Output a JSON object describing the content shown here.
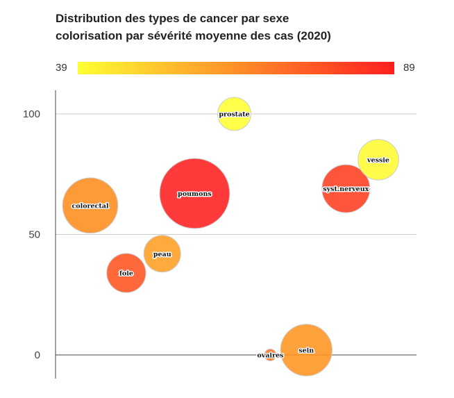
{
  "chart_data": {
    "type": "bubble",
    "title_line1": "Distribution des types de cancer par sexe",
    "title_line2": "colorisation par sévérité moyenne des cas (2020)",
    "color_scale": {
      "min": 39,
      "max": 89,
      "min_label": "39",
      "max_label": "89",
      "colors": [
        "#ffff33",
        "#ff1f1f"
      ]
    },
    "y_ticks": [
      0,
      50,
      100
    ],
    "y_tick_labels": [
      "0",
      "50",
      "100"
    ],
    "ylim": [
      -10,
      110
    ],
    "xlim": [
      0,
      100
    ],
    "grid": true,
    "points": [
      {
        "label": "prostate",
        "x": 50,
        "y": 100,
        "size": 3,
        "color": 39
      },
      {
        "label": "vessie",
        "x": 90,
        "y": 81,
        "size": 4,
        "color": 40
      },
      {
        "label": "syst.nerveux",
        "x": 81,
        "y": 69,
        "size": 5,
        "color": 82
      },
      {
        "label": "poumons",
        "x": 39,
        "y": 67,
        "size": 8,
        "color": 89
      },
      {
        "label": "colorectal",
        "x": 10,
        "y": 62,
        "size": 6,
        "color": 64
      },
      {
        "label": "peau",
        "x": 30,
        "y": 42,
        "size": 3.5,
        "color": 60
      },
      {
        "label": "foie",
        "x": 20,
        "y": 34,
        "size": 3.8,
        "color": 77
      },
      {
        "label": "ovaires",
        "x": 60,
        "y": 0,
        "size": 0.1,
        "color": 70
      },
      {
        "label": "sein",
        "x": 70,
        "y": 2,
        "size": 5.5,
        "color": 62
      }
    ]
  }
}
